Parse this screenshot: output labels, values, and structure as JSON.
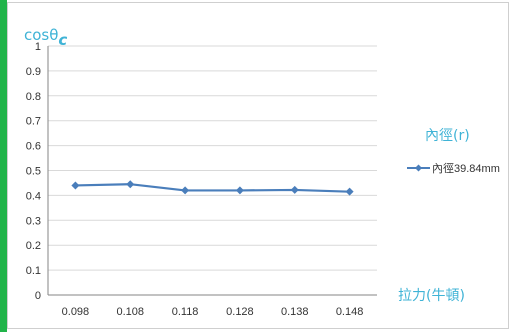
{
  "chart_data": {
    "type": "line",
    "x_categories": [
      "0.098",
      "0.108",
      "0.118",
      "0.128",
      "0.138",
      "0.148"
    ],
    "y_tick_labels": [
      "0",
      "0.1",
      "0.2",
      "0.3",
      "0.4",
      "0.5",
      "0.6",
      "0.7",
      "0.8",
      "0.9",
      "1"
    ],
    "ylim": [
      0,
      1
    ],
    "grid": true,
    "ylabel": "cosθ",
    "ylabel_subscript": "c",
    "xlabel": "拉力(牛頓)",
    "legend_title": "內徑(r)",
    "legend_position": "right",
    "series": [
      {
        "name": "內徑39.84mm",
        "values": [
          0.44,
          0.445,
          0.42,
          0.42,
          0.422,
          0.415
        ],
        "color": "#4a7ebb"
      }
    ]
  }
}
